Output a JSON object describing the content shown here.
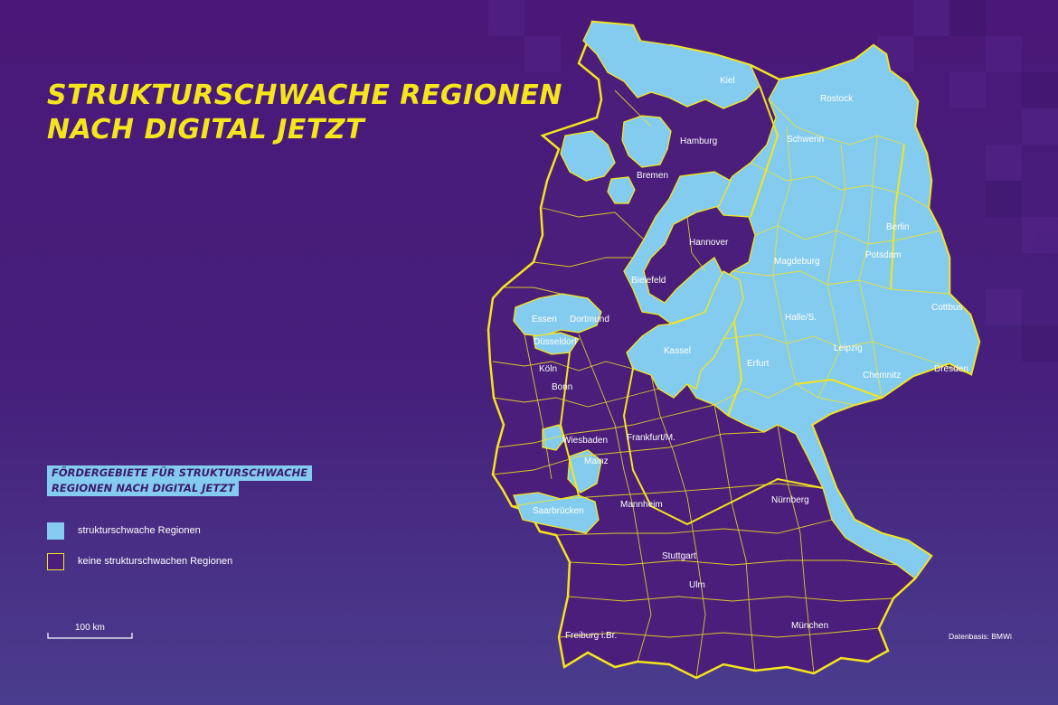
{
  "title": {
    "line1": "STRUKTURSCHWACHE REGIONEN",
    "line2": "NACH DIGITAL JETZT"
  },
  "legend": {
    "banner_line1": "FÖRDERGEBIETE FÜR STRUKTURSCHWACHE",
    "banner_line2": "REGIONEN NACH DIGITAL JETZT",
    "item_weak": "strukturschwache Regionen",
    "item_not_weak": "keine strukturschwachen Regionen"
  },
  "scale": {
    "label": "100 km"
  },
  "source": "Datenbasis: BMWi",
  "colors": {
    "weak_region": "#84ccef",
    "other_region": "#4a1e7a",
    "border": "#f5e51b",
    "title": "#f5e51b"
  },
  "cities": [
    {
      "id": "kiel",
      "name": "Kiel"
    },
    {
      "id": "rostock",
      "name": "Rostock"
    },
    {
      "id": "hamburg",
      "name": "Hamburg"
    },
    {
      "id": "schwerin",
      "name": "Schwerin"
    },
    {
      "id": "bremen",
      "name": "Bremen"
    },
    {
      "id": "hannover",
      "name": "Hannover"
    },
    {
      "id": "berlin",
      "name": "Berlin"
    },
    {
      "id": "magdeburg",
      "name": "Magdeburg"
    },
    {
      "id": "potsdam",
      "name": "Potsdam"
    },
    {
      "id": "bielefeld",
      "name": "Bielefeld"
    },
    {
      "id": "cottbus",
      "name": "Cottbus"
    },
    {
      "id": "essen",
      "name": "Essen"
    },
    {
      "id": "dortmund",
      "name": "Dortmund"
    },
    {
      "id": "halle",
      "name": "Halle/S."
    },
    {
      "id": "duesseldorf",
      "name": "Düsseldorf"
    },
    {
      "id": "kassel",
      "name": "Kassel"
    },
    {
      "id": "leipzig",
      "name": "Leipzig"
    },
    {
      "id": "erfurt",
      "name": "Erfurt"
    },
    {
      "id": "koeln",
      "name": "Köln"
    },
    {
      "id": "chemnitz",
      "name": "Chemnitz"
    },
    {
      "id": "dresden",
      "name": "Dresden"
    },
    {
      "id": "bonn",
      "name": "Bonn"
    },
    {
      "id": "wiesbaden",
      "name": "Wiesbaden"
    },
    {
      "id": "frankfurt",
      "name": "Frankfurt/M."
    },
    {
      "id": "mainz",
      "name": "Mainz"
    },
    {
      "id": "nuernberg",
      "name": "Nürnberg"
    },
    {
      "id": "mannheim",
      "name": "Mannheim"
    },
    {
      "id": "saarbruecken",
      "name": "Saarbrücken"
    },
    {
      "id": "stuttgart",
      "name": "Stuttgart"
    },
    {
      "id": "ulm",
      "name": "Ulm"
    },
    {
      "id": "muenchen",
      "name": "München"
    },
    {
      "id": "freiburg",
      "name": "Freiburg i.Br."
    }
  ]
}
